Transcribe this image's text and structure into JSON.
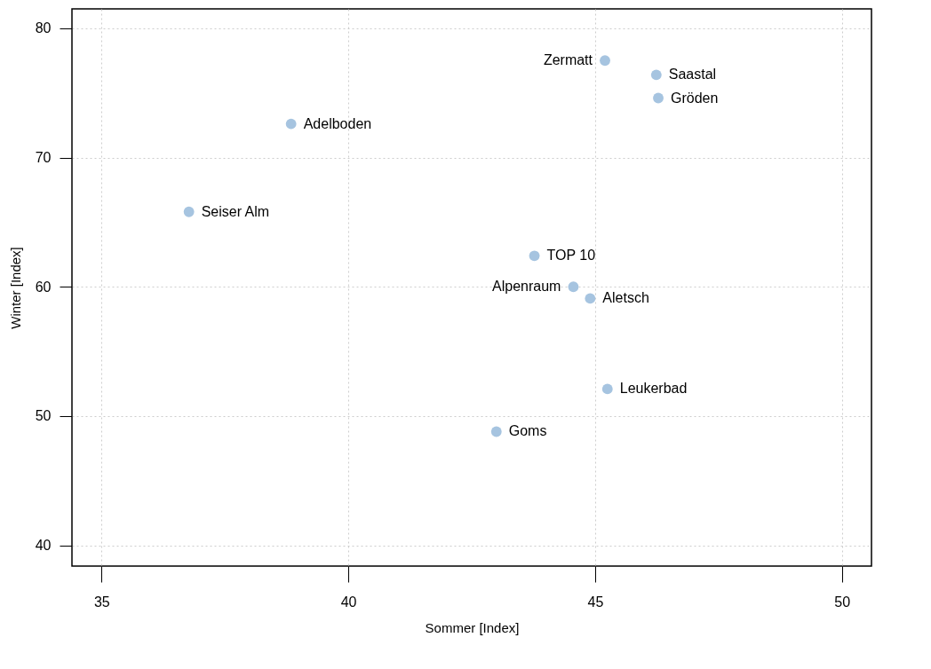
{
  "chart_data": {
    "type": "scatter",
    "xlabel": "Sommer [Index]",
    "ylabel": "Winter [Index]",
    "x": [
      45.2,
      46.24,
      46.28,
      38.84,
      36.77,
      43.77,
      44.56,
      44.9,
      45.25,
      43.0
    ],
    "values": [
      77.5,
      76.4,
      74.6,
      72.6,
      65.8,
      62.4,
      60.0,
      59.1,
      52.1,
      48.8
    ],
    "color": "#a6c4e0",
    "marker": "circle",
    "grid": true,
    "xlim": [
      34.4,
      50.6
    ],
    "xticks": [
      35,
      40,
      45,
      50
    ],
    "ylim": [
      38.4,
      81.5
    ],
    "yticks": [
      40,
      50,
      60,
      70,
      80
    ],
    "annotations": [
      {
        "text": "Zermatt",
        "x": 45.2,
        "y": 77.5
      },
      {
        "text": "Saastal",
        "x": 46.24,
        "y": 76.4
      },
      {
        "text": "Gröden",
        "x": 46.28,
        "y": 74.6
      },
      {
        "text": "Adelboden",
        "x": 38.84,
        "y": 72.6
      },
      {
        "text": "Seiser Alm",
        "x": 36.77,
        "y": 65.8
      },
      {
        "text": "TOP 10",
        "x": 43.77,
        "y": 62.4
      },
      {
        "text": "Alpenraum",
        "x": 44.56,
        "y": 60.0
      },
      {
        "text": "Aletsch",
        "x": 44.9,
        "y": 59.1
      },
      {
        "text": "Leukerbad",
        "x": 45.25,
        "y": 52.1
      },
      {
        "text": "Goms",
        "x": 43.0,
        "y": 48.8
      }
    ]
  }
}
